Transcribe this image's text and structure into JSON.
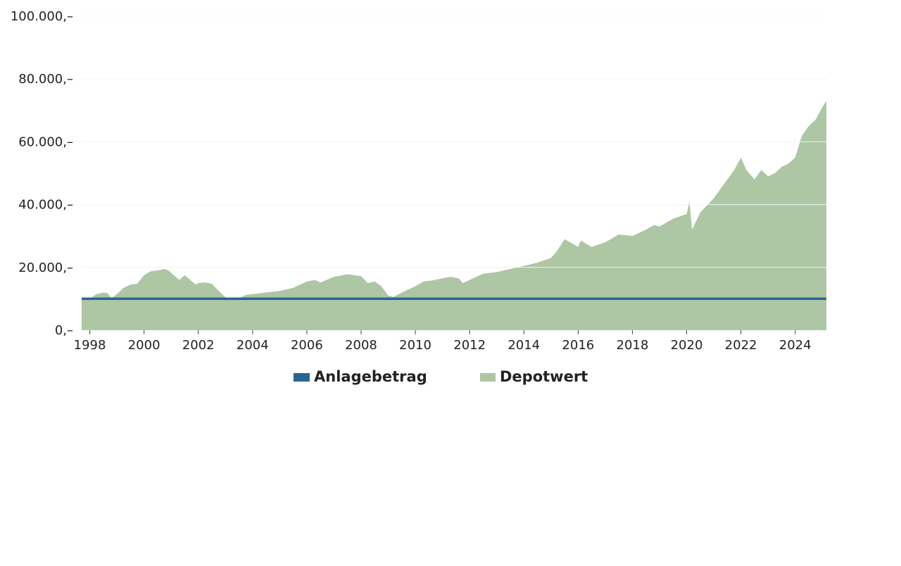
{
  "colors": {
    "anlagebetrag": "#2a6496",
    "depotwert": "#adc6a4",
    "grid": "#dddddd",
    "text": "#222222"
  },
  "chart_data": {
    "type": "area",
    "title": "",
    "xlabel": "",
    "ylabel": "",
    "xlim": [
      1997.7,
      2025.15
    ],
    "ylim": [
      0,
      100000
    ],
    "yticks": [
      {
        "value": 0,
        "label": "0,–"
      },
      {
        "value": 20000,
        "label": "20.000,–"
      },
      {
        "value": 40000,
        "label": "40.000,–"
      },
      {
        "value": 60000,
        "label": "60.000,–"
      },
      {
        "value": 80000,
        "label": "80.000,–"
      },
      {
        "value": 100000,
        "label": "100.000,–"
      }
    ],
    "xticks": [
      {
        "value": 1998,
        "label": "1998"
      },
      {
        "value": 2000,
        "label": "2000"
      },
      {
        "value": 2002,
        "label": "2002"
      },
      {
        "value": 2004,
        "label": "2004"
      },
      {
        "value": 2006,
        "label": "2006"
      },
      {
        "value": 2008,
        "label": "2008"
      },
      {
        "value": 2010,
        "label": "2010"
      },
      {
        "value": 2012,
        "label": "2012"
      },
      {
        "value": 2014,
        "label": "2014"
      },
      {
        "value": 2016,
        "label": "2016"
      },
      {
        "value": 2018,
        "label": "2018"
      },
      {
        "value": 2020,
        "label": "2020"
      },
      {
        "value": 2022,
        "label": "2022"
      },
      {
        "value": 2024,
        "label": "2024"
      }
    ],
    "grid": true,
    "legend_position": "bottom-center",
    "series": [
      {
        "name": "Anlagebetrag",
        "type": "line",
        "color": "#2a6496",
        "x": [
          1997.7,
          2025.15
        ],
        "y": [
          10000,
          10000
        ]
      },
      {
        "name": "Depotwert",
        "type": "area",
        "color": "#adc6a4",
        "x": [
          1997.7,
          1998.0,
          1998.25,
          1998.5,
          1998.65,
          1998.8,
          1999.0,
          1999.25,
          1999.5,
          1999.75,
          2000.0,
          2000.25,
          2000.5,
          2000.75,
          2000.9,
          2001.1,
          2001.3,
          2001.5,
          2001.7,
          2001.9,
          2002.0,
          2002.25,
          2002.5,
          2002.75,
          2003.0,
          2003.2,
          2003.5,
          2003.75,
          2004.0,
          2004.5,
          2005.0,
          2005.5,
          2006.0,
          2006.3,
          2006.5,
          2007.0,
          2007.5,
          2007.75,
          2008.0,
          2008.25,
          2008.5,
          2008.75,
          2009.0,
          2009.2,
          2009.5,
          2010.0,
          2010.3,
          2010.6,
          2011.0,
          2011.3,
          2011.6,
          2011.75,
          2012.0,
          2012.5,
          2013.0,
          2013.5,
          2014.0,
          2014.5,
          2015.0,
          2015.2,
          2015.5,
          2015.7,
          2016.0,
          2016.1,
          2016.5,
          2017.0,
          2017.5,
          2018.0,
          2018.5,
          2018.8,
          2019.0,
          2019.5,
          2020.0,
          2020.1,
          2020.2,
          2020.5,
          2021.0,
          2021.5,
          2021.75,
          2022.0,
          2022.2,
          2022.5,
          2022.75,
          2023.0,
          2023.25,
          2023.5,
          2023.75,
          2024.0,
          2024.25,
          2024.5,
          2024.75,
          2025.0,
          2025.15
        ],
        "y": [
          10000,
          10100,
          11500,
          12000,
          11800,
          10200,
          11500,
          13500,
          14500,
          14800,
          17500,
          18800,
          19000,
          19500,
          19000,
          17500,
          16000,
          17500,
          16000,
          14500,
          15000,
          15200,
          14800,
          12500,
          10500,
          10100,
          10200,
          11200,
          11500,
          12000,
          12500,
          13500,
          15500,
          16000,
          15200,
          17000,
          17800,
          17500,
          17200,
          15000,
          15500,
          14000,
          11000,
          10600,
          12000,
          14000,
          15500,
          15800,
          16500,
          17000,
          16500,
          15000,
          16000,
          18000,
          18500,
          19500,
          20500,
          21500,
          23000,
          25000,
          29000,
          28000,
          26500,
          28500,
          26500,
          28000,
          30500,
          30000,
          32000,
          33500,
          33000,
          35500,
          37000,
          41000,
          32000,
          37500,
          42000,
          48000,
          51000,
          55000,
          51000,
          48000,
          51000,
          49000,
          50000,
          52000,
          53000,
          55000,
          62000,
          65000,
          67000,
          71000,
          73000
        ]
      }
    ]
  },
  "legend": [
    {
      "label": "Anlagebetrag",
      "color": "#2a6496"
    },
    {
      "label": "Depotwert",
      "color": "#adc6a4"
    }
  ]
}
